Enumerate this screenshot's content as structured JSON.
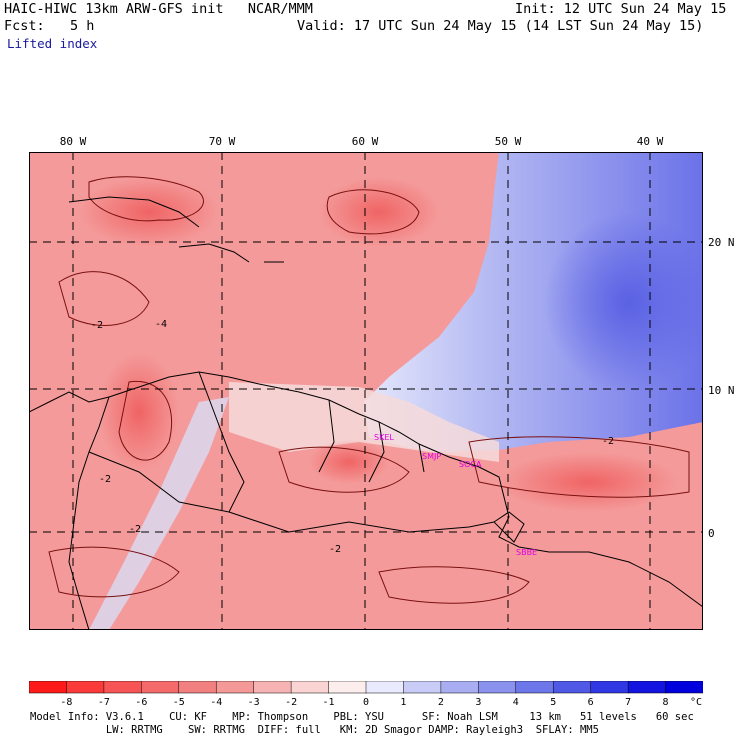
{
  "header": {
    "model_title": "HAIC-HIWC 13km ARW-GFS init   NCAR/MMM",
    "init": "Init: 12 UTC Sun 24 May 15",
    "fcst_label": "Fcst:",
    "fcst_value": "5 h",
    "valid": "Valid: 17 UTC Sun 24 May 15 (14 LST Sun 24 May 15)",
    "field": "Lifted index"
  },
  "map": {
    "longitude_labels": [
      "80 W",
      "70 W",
      "60 W",
      "50 W",
      "40 W"
    ],
    "latitude_labels": [
      "20 N",
      "10 N",
      "0"
    ],
    "contour_labels": [
      "-2",
      "-4",
      "-2",
      "-2",
      "-2",
      "-2"
    ],
    "stations": [
      "SKEL",
      "SMJP",
      "SOCA",
      "SBBE"
    ],
    "colors": {
      "station_marker": "#e000e0",
      "coastline": "#000000",
      "contour": "#7a1010",
      "grid": "#000000"
    }
  },
  "colorbar": {
    "tick_labels": [
      "-8",
      "-7",
      "-6",
      "-5",
      "-4",
      "-3",
      "-2",
      "-1",
      "0",
      "1",
      "2",
      "3",
      "4",
      "5",
      "6",
      "7",
      "8"
    ],
    "unit": "°C",
    "colors": [
      "#ff1a1a",
      "#fb3a3a",
      "#f75555",
      "#f46a6a",
      "#f28080",
      "#f49898",
      "#f7b3b3",
      "#fad3d3",
      "#fdeeee",
      "#eaeaff",
      "#c8ccf7",
      "#a9aef2",
      "#8b92ee",
      "#6d77ea",
      "#5058e6",
      "#3038e3",
      "#1414e0",
      "#0000dd"
    ]
  },
  "footer": {
    "line1": "Model Info: V3.6.1    CU: KF    MP: Thompson    PBL: YSU      SF: Noah LSM     13 km   51 levels   60 sec",
    "line2": "            LW: RRTMG    SW: RRTMG  DIFF: full   KM: 2D Smagor DAMP: Rayleigh3  SFLAY: MM5"
  }
}
